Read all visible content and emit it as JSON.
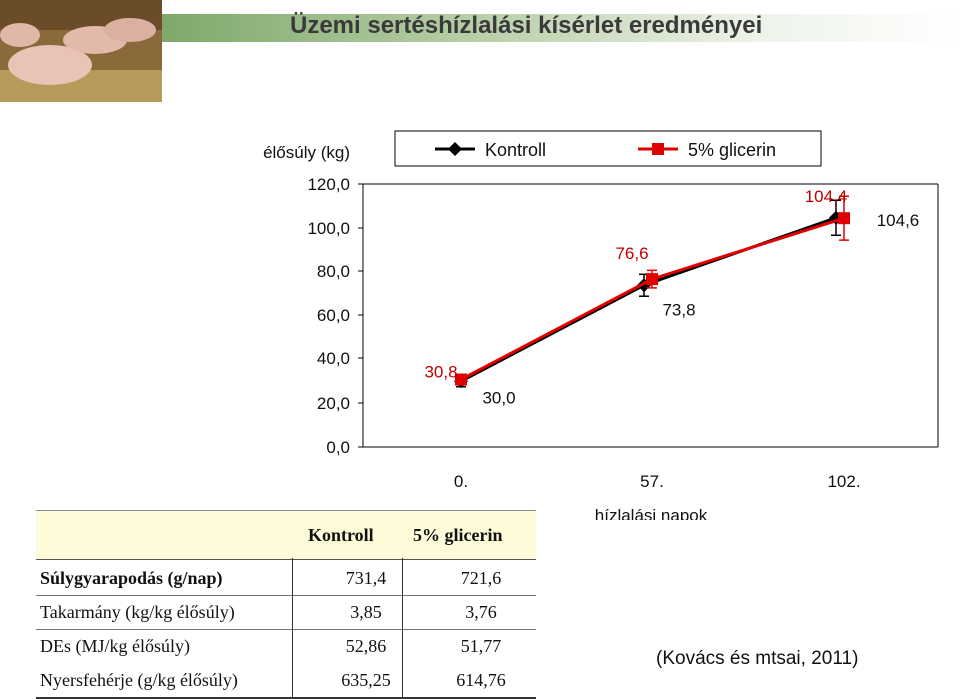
{
  "page": {
    "title": "Üzemi sertéshízlalási kísérlet eredményei",
    "citation": "(Kovács és mtsai, 2011)"
  },
  "chart_data": {
    "type": "line",
    "ylabel": "élősúly (kg)",
    "xlabel": "hízlalási napok",
    "categories": [
      "0.",
      "57.",
      "102."
    ],
    "yticks": [
      "0,0",
      "20,0",
      "40,0",
      "60,0",
      "80,0",
      "100,0",
      "120,0"
    ],
    "ylim": [
      0,
      120
    ],
    "grid": false,
    "legend": "top",
    "series": [
      {
        "name": "Kontroll",
        "values": [
          30.0,
          73.8,
          104.6
        ],
        "labels": [
          "30,0",
          "73,8",
          "104,6"
        ],
        "color": "#000000",
        "marker": "diamond"
      },
      {
        "name": "5% glicerin",
        "values": [
          30.8,
          76.6,
          104.4
        ],
        "labels": [
          "30,8",
          "76,6",
          "104,4"
        ],
        "color": "#e00000",
        "marker": "square"
      }
    ]
  },
  "table": {
    "headers": [
      "Kontroll",
      "5% glicerin"
    ],
    "rows": [
      {
        "label": "Súlygyarapodás (g/nap)",
        "kontroll": "731,4",
        "glicerin": "721,6"
      },
      {
        "label": "Takarmány (kg/kg élősúly)",
        "kontroll": "3,85",
        "glicerin": "3,76"
      },
      {
        "label": "DEs (MJ/kg élősúly)",
        "kontroll": "52,86",
        "glicerin": "51,77"
      },
      {
        "label": "Nyersfehérje (g/kg élősúly)",
        "kontroll": "635,25",
        "glicerin": "614,76"
      }
    ]
  }
}
